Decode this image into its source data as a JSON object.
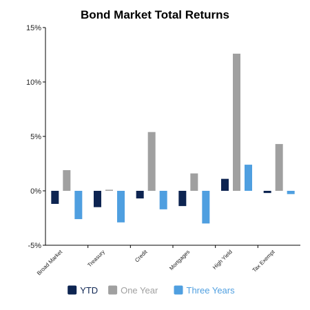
{
  "chart_data": {
    "type": "bar",
    "title": "Bond Market Total Returns",
    "categories": [
      "Broad Market",
      "Treasury",
      "Credit",
      "Mortgages",
      "High Yield",
      "Tax Exempt"
    ],
    "series": [
      {
        "name": "YTD",
        "color": "#0d2451",
        "values": [
          -1.2,
          -1.5,
          -0.7,
          -1.4,
          1.1,
          -0.2
        ]
      },
      {
        "name": "One Year",
        "color": "#a0a0a0",
        "values": [
          1.9,
          0.1,
          5.4,
          1.6,
          12.6,
          4.3
        ]
      },
      {
        "name": "Three Years",
        "color": "#4f9fe0",
        "values": [
          -2.6,
          -2.9,
          -1.7,
          -3.0,
          2.4,
          -0.3
        ]
      }
    ],
    "ylim": [
      -5,
      15
    ],
    "yticks": [
      -5,
      0,
      5,
      10,
      15
    ],
    "ytick_labels": [
      "-5%",
      "0%",
      "5%",
      "10%",
      "15%"
    ],
    "legend_position": "bottom",
    "grid": false
  }
}
